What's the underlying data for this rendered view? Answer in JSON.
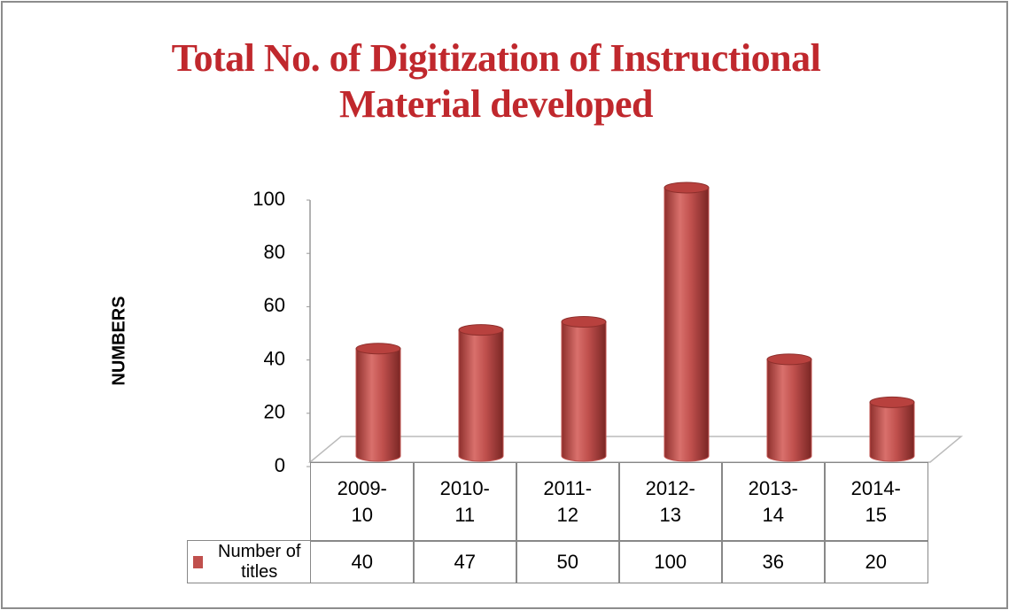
{
  "chart_data": {
    "type": "bar",
    "title": "Total No. of  Digitization of Instructional Material developed",
    "y_label": "NUMBERS",
    "categories": [
      "2009-10",
      "2010-11",
      "2011-12",
      "2012-13",
      "2013-14",
      "2014-15"
    ],
    "series": [
      {
        "name": "Number of titles",
        "color": "#c0504d",
        "values": [
          40,
          47,
          50,
          100,
          36,
          20
        ]
      }
    ],
    "ylim": [
      0,
      100
    ],
    "yticks": [
      0,
      20,
      40,
      60,
      80,
      100
    ],
    "grid": false
  }
}
